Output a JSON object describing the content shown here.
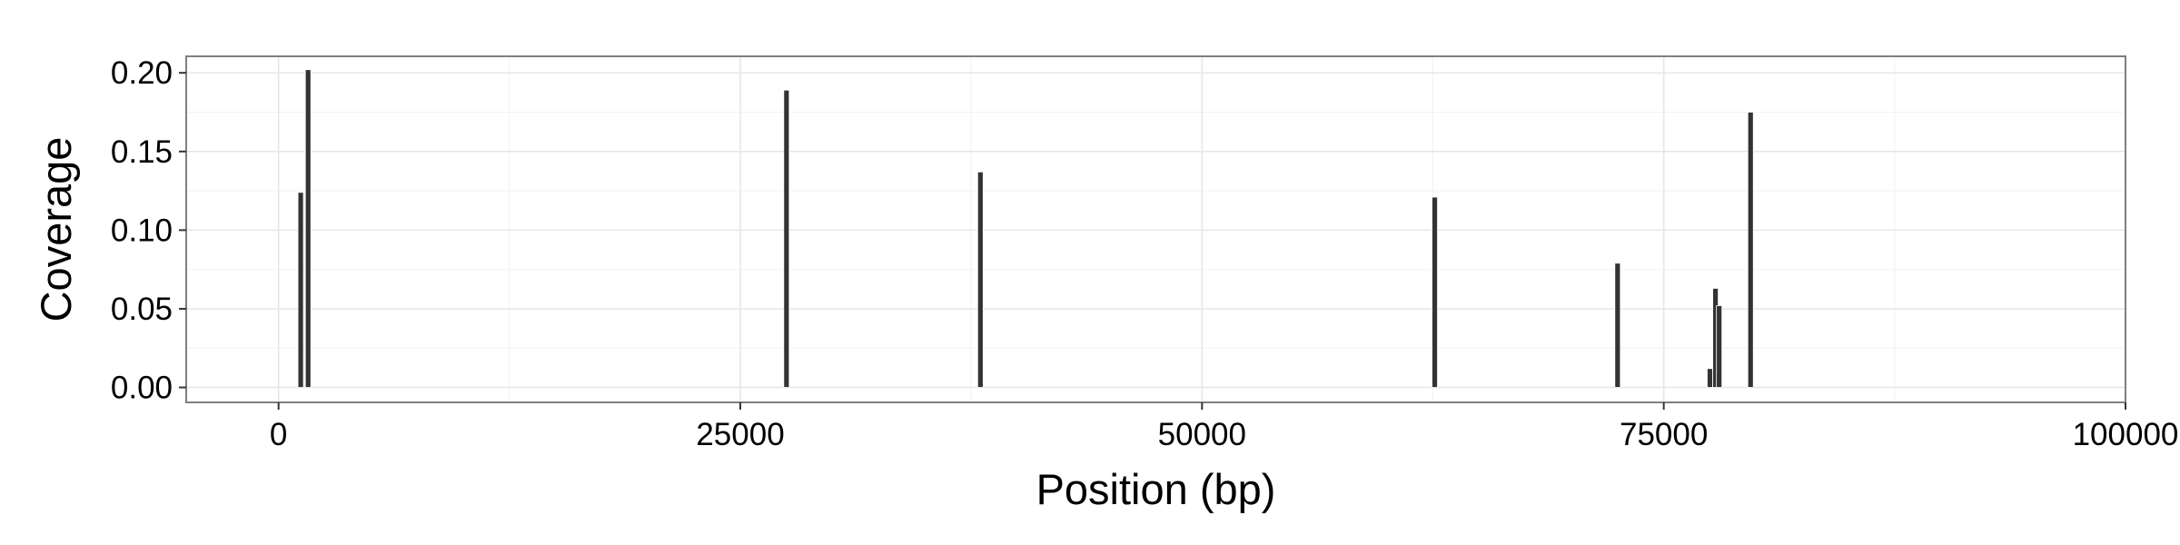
{
  "chart_data": {
    "type": "bar",
    "xlabel": "Position (bp)",
    "ylabel": "Coverage",
    "xlim": [
      -5000,
      100000
    ],
    "ylim": [
      -0.0095,
      0.2105
    ],
    "x_ticks": [
      0,
      25000,
      50000,
      75000,
      100000
    ],
    "x_tick_labels": [
      "0",
      "25000",
      "50000",
      "75000",
      "100000"
    ],
    "y_ticks": [
      0.0,
      0.05,
      0.1,
      0.15,
      0.2
    ],
    "y_tick_labels": [
      "0.00",
      "0.05",
      "0.10",
      "0.15",
      "0.20"
    ],
    "grid": true,
    "legend": "none",
    "bar_color": "#333333",
    "panel_border_color": "#7f7f7f",
    "grid_major_color": "#e6e6e6",
    "grid_minor_color": "#f2f2f2",
    "bins": [
      {
        "x": 1200,
        "value": 0.124
      },
      {
        "x": 1600,
        "value": 0.202
      },
      {
        "x": 27500,
        "value": 0.189
      },
      {
        "x": 38000,
        "value": 0.137
      },
      {
        "x": 62600,
        "value": 0.121
      },
      {
        "x": 72500,
        "value": 0.079
      },
      {
        "x": 77500,
        "value": 0.012
      },
      {
        "x": 77800,
        "value": 0.063
      },
      {
        "x": 78000,
        "value": 0.052
      },
      {
        "x": 79700,
        "value": 0.175
      }
    ]
  }
}
